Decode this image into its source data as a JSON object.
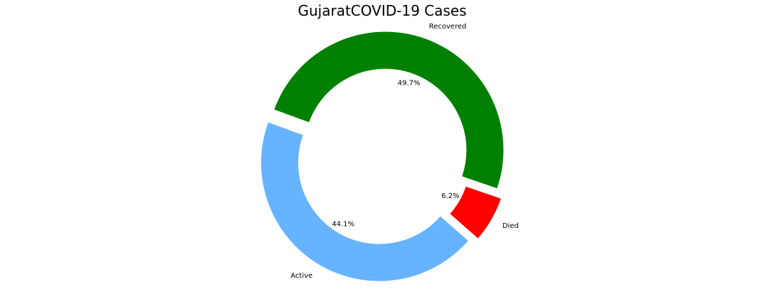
{
  "chart_data": {
    "type": "pie",
    "title": "GujaratCOVID-19 Cases",
    "categories": [
      "Active",
      "Died",
      "Recovered"
    ],
    "values": [
      44.1,
      6.2,
      49.7
    ],
    "percent_labels": [
      "44.1%",
      "6.2%",
      "49.7%"
    ],
    "colors": [
      "#66b3ff",
      "#ff0000",
      "#008000"
    ],
    "exploded": [
      true,
      true,
      true
    ],
    "donut": true,
    "legend": "none"
  }
}
